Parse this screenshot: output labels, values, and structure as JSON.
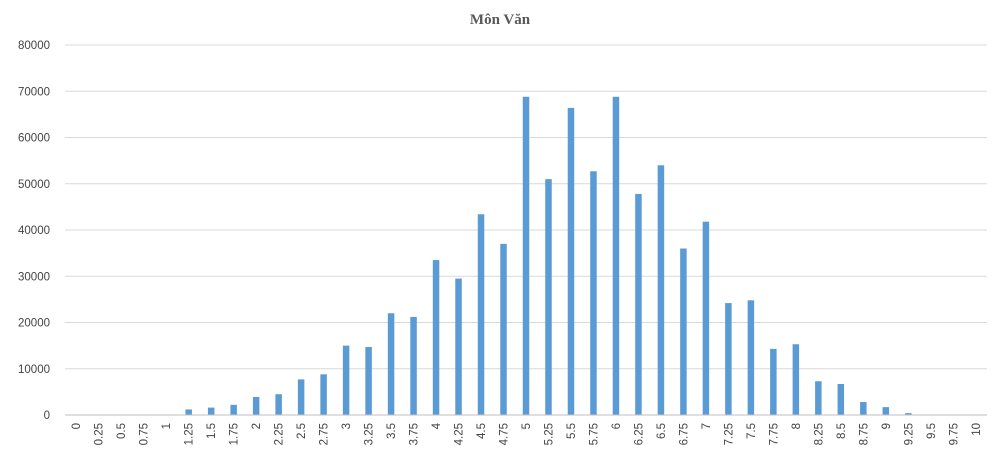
{
  "chart_data": {
    "type": "bar",
    "title": "Môn Văn",
    "xlabel": "",
    "ylabel": "",
    "ylim": [
      0,
      80000
    ],
    "yticks": [
      "0",
      "10000",
      "20000",
      "30000",
      "40000",
      "50000",
      "60000",
      "70000",
      "80000"
    ],
    "grid": true,
    "legend": "none",
    "bar_color": "#5b9bd5",
    "categories": [
      "0",
      "0.25",
      "0.5",
      "0.75",
      "1",
      "1.25",
      "1.5",
      "1.75",
      "2",
      "2.25",
      "2.5",
      "2.75",
      "3",
      "3.25",
      "3.5",
      "3.75",
      "4",
      "4.25",
      "4.5",
      "4.75",
      "5",
      "5.25",
      "5.5",
      "5.75",
      "6",
      "6.25",
      "6.5",
      "6.75",
      "7",
      "7.25",
      "7.5",
      "7.75",
      "8",
      "8.25",
      "8.5",
      "8.75",
      "9",
      "9.25",
      "9.5",
      "9.75",
      "10"
    ],
    "values": [
      0,
      0,
      0,
      0,
      0,
      1200,
      1600,
      2200,
      3900,
      4500,
      7700,
      8800,
      15000,
      14700,
      22000,
      21200,
      33500,
      29500,
      43400,
      37000,
      68800,
      51000,
      66400,
      52700,
      68800,
      47800,
      54000,
      36000,
      41800,
      24200,
      24800,
      14300,
      15300,
      7300,
      6700,
      2800,
      1700,
      400,
      0,
      0,
      0
    ]
  }
}
